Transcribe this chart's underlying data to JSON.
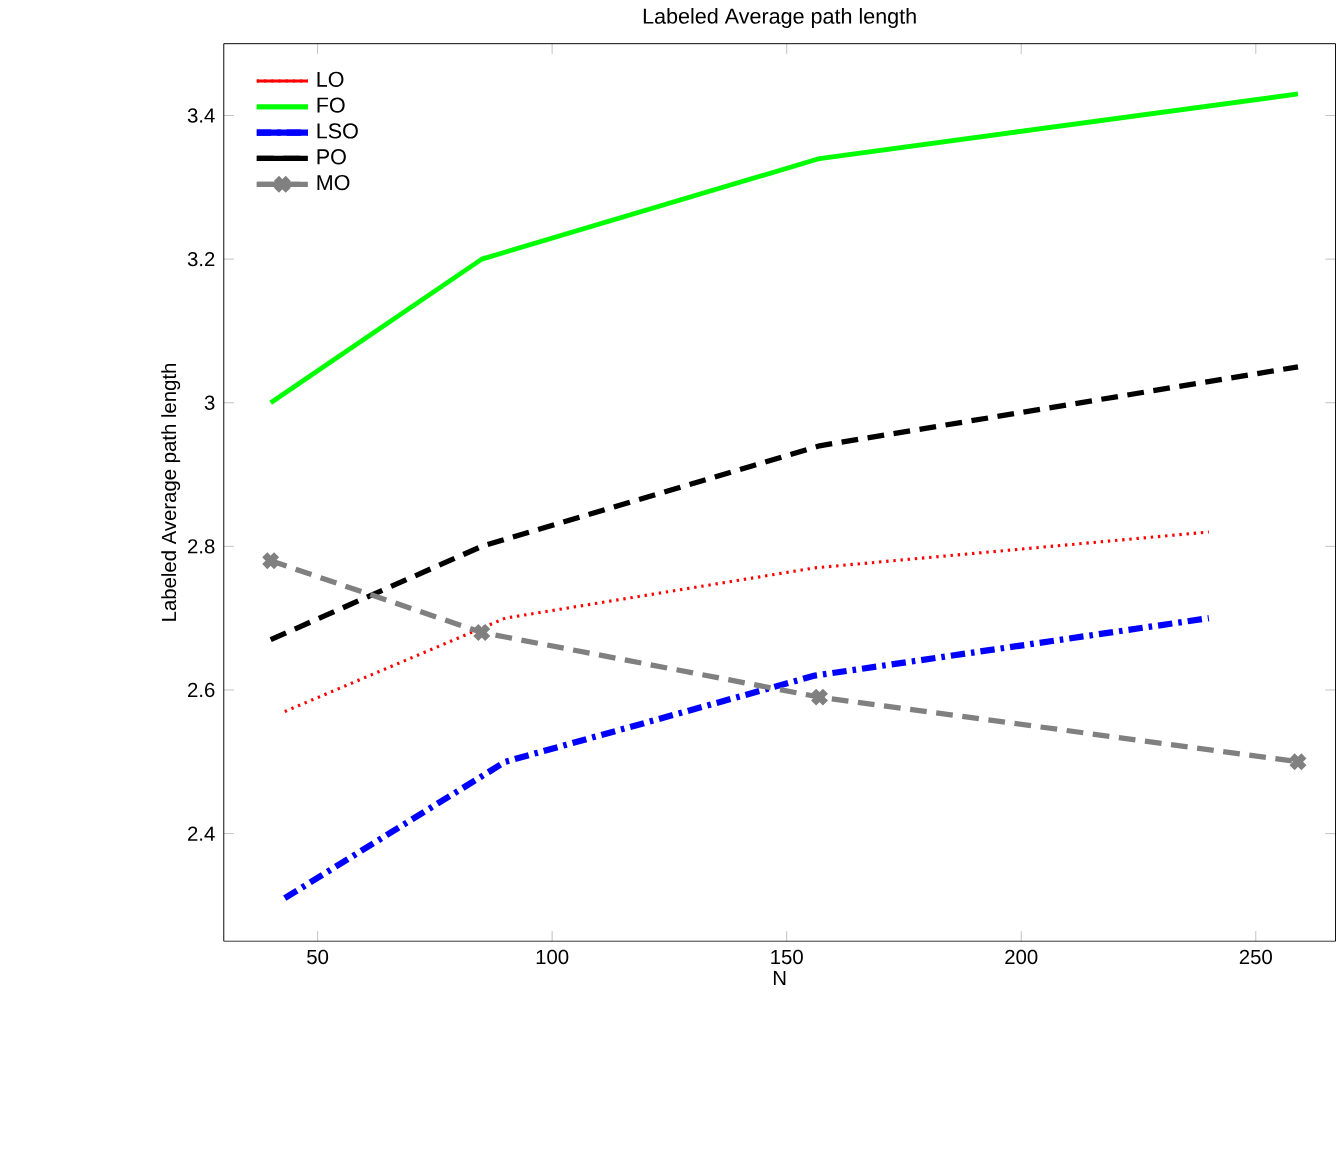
{
  "chart_data": {
    "type": "line",
    "title": "Labeled Average path length",
    "xlabel": "N",
    "ylabel": "Labeled Average path length",
    "xlim": [
      30,
      267
    ],
    "ylim": [
      2.25,
      3.5
    ],
    "xticks": [
      50,
      100,
      150,
      200,
      250
    ],
    "yticks": [
      2.4,
      2.6,
      2.8,
      3,
      3.2,
      3.4
    ],
    "grid": false,
    "legend": "top left",
    "series": [
      {
        "name": "LO",
        "color": "#ff0000",
        "line_style": "dotted",
        "x": [
          43,
          90,
          156,
          240
        ],
        "values": [
          2.57,
          2.7,
          2.77,
          2.82
        ]
      },
      {
        "name": "FO",
        "color": "#00ff00",
        "line_style": "solid",
        "x": [
          40,
          85,
          157,
          259
        ],
        "values": [
          3.0,
          3.2,
          3.34,
          3.43
        ]
      },
      {
        "name": "LSO",
        "color": "#0000ff",
        "line_style": "dashdot",
        "x": [
          43,
          90,
          156,
          240
        ],
        "values": [
          2.31,
          2.5,
          2.62,
          2.7
        ]
      },
      {
        "name": "PO",
        "color": "#000000",
        "line_style": "dashed",
        "x": [
          40,
          85,
          157,
          259
        ],
        "values": [
          2.67,
          2.8,
          2.94,
          3.05
        ]
      },
      {
        "name": "MO",
        "color": "#808080",
        "line_style": "dashed",
        "marker": "cross",
        "x": [
          40,
          85,
          157,
          259
        ],
        "values": [
          2.78,
          2.68,
          2.59,
          2.5
        ]
      }
    ]
  }
}
